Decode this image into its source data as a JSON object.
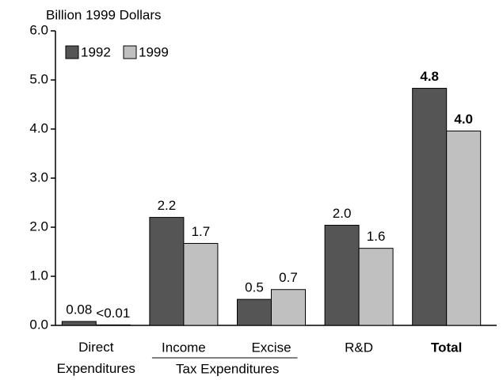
{
  "chart_data": {
    "type": "bar",
    "y_label": "Billion 1999 Dollars",
    "categories": [
      "Direct Expenditures",
      "Income",
      "Excise",
      "R&D",
      "Total"
    ],
    "group_label": "Tax Expenditures",
    "series": [
      {
        "name": "1992",
        "color": "#555555",
        "values": [
          0.08,
          2.2,
          0.53,
          2.04,
          4.83
        ],
        "value_labels": [
          "0.08",
          "2.2",
          "0.5",
          "2.0",
          "4.8"
        ]
      },
      {
        "name": "1999",
        "color": "#c0c0c0",
        "values": [
          0.01,
          1.67,
          0.73,
          1.57,
          3.96
        ],
        "value_labels": [
          "<0.01",
          "1.7",
          "0.7",
          "1.6",
          "4.0"
        ]
      }
    ],
    "ylim": [
      0,
      6
    ],
    "yticks": [
      {
        "value": 0,
        "label": "0.0"
      },
      {
        "value": 1,
        "label": "1.0"
      },
      {
        "value": 2,
        "label": "2.0"
      },
      {
        "value": 3,
        "label": "3.0"
      },
      {
        "value": 4,
        "label": "4.0"
      },
      {
        "value": 5,
        "label": "5.0"
      },
      {
        "value": 6,
        "label": "6.0"
      }
    ],
    "legend": "top-left"
  }
}
